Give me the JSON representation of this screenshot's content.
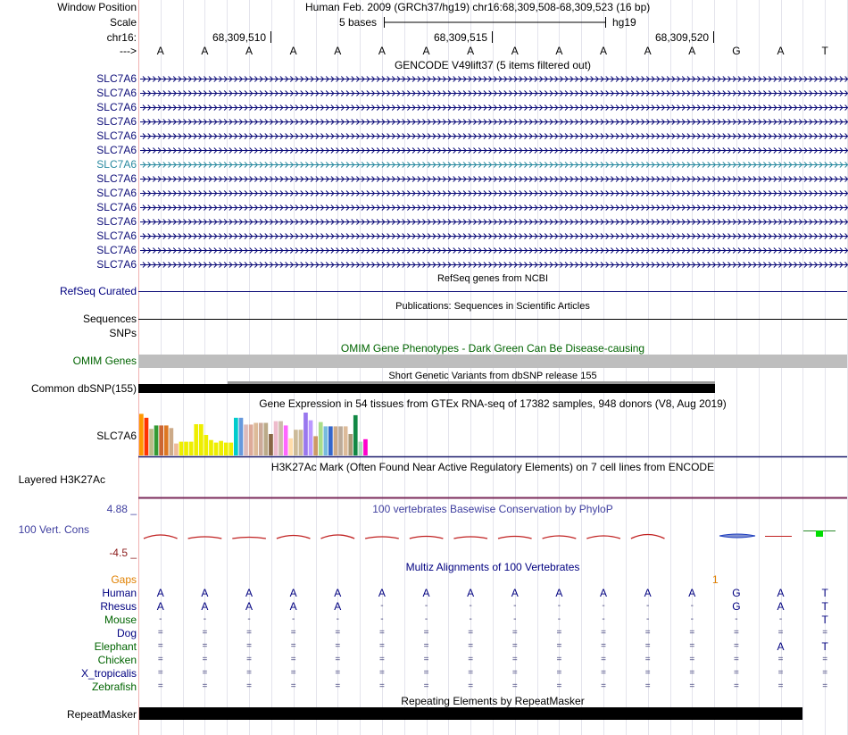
{
  "header": {
    "window_position_label": "Window Position",
    "window_position_text": "Human Feb. 2009 (GRCh37/hg19)   chr16:68,309,508-68,309,523 (16 bp)",
    "scale_label": "Scale",
    "scale_text": "5 bases",
    "scale_db": "hg19",
    "chrom_label": "chr16:",
    "arrow_label": "--->",
    "coords": [
      "68,309,510",
      "68,309,515",
      "68,309,520"
    ],
    "bases": [
      "A",
      "A",
      "A",
      "A",
      "A",
      "A",
      "A",
      "A",
      "A",
      "A",
      "A",
      "A",
      "A",
      "G",
      "A",
      "T"
    ]
  },
  "gencode": {
    "title": "GENCODE V49lift37 (5 items filtered out)",
    "genes": [
      "SLC7A6",
      "SLC7A6",
      "SLC7A6",
      "SLC7A6",
      "SLC7A6",
      "SLC7A6",
      "SLC7A6",
      "SLC7A6",
      "SLC7A6",
      "SLC7A6",
      "SLC7A6",
      "SLC7A6",
      "SLC7A6",
      "SLC7A6"
    ],
    "highlight_color": "#2a8aa0",
    "gene_color": "#0c0c78"
  },
  "refseq": {
    "title": "RefSeq genes from NCBI",
    "label": "RefSeq Curated"
  },
  "pubs": {
    "title": "Publications: Sequences in Scientific Articles",
    "label": "Sequences"
  },
  "snps": {
    "label": "SNPs"
  },
  "omim": {
    "title": "OMIM Gene Phenotypes - Dark Green Can Be Disease-causing",
    "label": "OMIM Genes"
  },
  "dbsnp": {
    "title": "Short Genetic Variants from dbSNP release 155",
    "label": "Common dbSNP(155)"
  },
  "gtex": {
    "title": "Gene Expression in 54 tissues from GTEx RNA-seq of 17382 samples, 948 donors (V8, Aug 2019)",
    "label": "SLC7A6",
    "bars": [
      {
        "value": 0.97,
        "color": "#FF9900"
      },
      {
        "value": 0.88,
        "color": "#FF3300"
      },
      {
        "value": 0.62,
        "color": "#BBBB88"
      },
      {
        "value": 0.7,
        "color": "#339933"
      },
      {
        "value": 0.7,
        "color": "#CC6633"
      },
      {
        "value": 0.7,
        "color": "#DD7722"
      },
      {
        "value": 0.64,
        "color": "#CCAA88"
      },
      {
        "value": 0.28,
        "color": "#EEBB99"
      },
      {
        "value": 0.32,
        "color": "#EEEE00"
      },
      {
        "value": 0.32,
        "color": "#EEEE00"
      },
      {
        "value": 0.32,
        "color": "#EEEE00"
      },
      {
        "value": 0.73,
        "color": "#EEEE00"
      },
      {
        "value": 0.73,
        "color": "#EEEE00"
      },
      {
        "value": 0.48,
        "color": "#EEEE00"
      },
      {
        "value": 0.36,
        "color": "#EEEE00"
      },
      {
        "value": 0.3,
        "color": "#EEEE00"
      },
      {
        "value": 0.34,
        "color": "#EEEE00"
      },
      {
        "value": 0.3,
        "color": "#EEEE00"
      },
      {
        "value": 0.3,
        "color": "#EEEE00"
      },
      {
        "value": 0.88,
        "color": "#00CCCC"
      },
      {
        "value": 0.88,
        "color": "#6699DD"
      },
      {
        "value": 0.72,
        "color": "#DDBBBB"
      },
      {
        "value": 0.72,
        "color": "#DDAA99"
      },
      {
        "value": 0.76,
        "color": "#DDBB99"
      },
      {
        "value": 0.76,
        "color": "#CCAA99"
      },
      {
        "value": 0.76,
        "color": "#BBAA88"
      },
      {
        "value": 0.5,
        "color": "#886644"
      },
      {
        "value": 0.8,
        "color": "#EEBBCC"
      },
      {
        "value": 0.8,
        "color": "#CCBBAA"
      },
      {
        "value": 0.7,
        "color": "#FF66FF"
      },
      {
        "value": 0.4,
        "color": "#FFDDAA"
      },
      {
        "value": 0.6,
        "color": "#CCBB99"
      },
      {
        "value": 0.6,
        "color": "#CCBB99"
      },
      {
        "value": 1.0,
        "color": "#9977EE"
      },
      {
        "value": 0.82,
        "color": "#BB99FF"
      },
      {
        "value": 0.45,
        "color": "#CC9966"
      },
      {
        "value": 0.78,
        "color": "#AADD88"
      },
      {
        "value": 0.68,
        "color": "#77BBDD"
      },
      {
        "value": 0.68,
        "color": "#3366CC"
      },
      {
        "value": 0.68,
        "color": "#CCAA88"
      },
      {
        "value": 0.68,
        "color": "#BBAA99"
      },
      {
        "value": 0.68,
        "color": "#DDBB99"
      },
      {
        "value": 0.5,
        "color": "#AA9977"
      },
      {
        "value": 0.94,
        "color": "#118844"
      },
      {
        "value": 0.32,
        "color": "#AADDBB"
      },
      {
        "value": 0.38,
        "color": "#FF00CC"
      }
    ]
  },
  "h3k27ac": {
    "title": "H3K27Ac Mark (Often Found Near Active Regulatory Elements) on 7 cell lines from ENCODE",
    "label": "Layered H3K27Ac"
  },
  "cons": {
    "title": "100 vertebrates Basewise Conservation by PhyloP",
    "label": "100 Vert. Cons",
    "max_label": "4.88 _",
    "min_label": "-4.5 _"
  },
  "multiz": {
    "title": "Multiz Alignments of 100 Vertebrates",
    "gaps_label": "Gaps",
    "gaps_marks": [
      "",
      "",
      "",
      "",
      "",
      "",
      "",
      "",
      "",
      "",
      "",
      "",
      "1",
      "",
      "",
      ""
    ],
    "rows": [
      {
        "species": "Human",
        "color": "#000080",
        "bases": [
          "A",
          "A",
          "A",
          "A",
          "A",
          "A",
          "A",
          "A",
          "A",
          "A",
          "A",
          "A",
          "A",
          "G",
          "A",
          "T"
        ]
      },
      {
        "species": "Rhesus",
        "color": "#000080",
        "bases": [
          "A",
          "A",
          "A",
          "A",
          "A",
          "-",
          "-",
          "-",
          "-",
          "-",
          "-",
          "-",
          "-",
          "G",
          "A",
          "T"
        ]
      },
      {
        "species": "Mouse",
        "color": "#006400",
        "bases": [
          "-",
          "-",
          "-",
          "-",
          "-",
          "-",
          "-",
          "-",
          "-",
          "-",
          "-",
          "-",
          "-",
          "-",
          "-",
          "T"
        ]
      },
      {
        "species": "Dog",
        "color": "#000080",
        "bases": [
          "=",
          "=",
          "=",
          "=",
          "=",
          "=",
          "=",
          "=",
          "=",
          "=",
          "=",
          "=",
          "=",
          "=",
          "=",
          "="
        ]
      },
      {
        "species": "Elephant",
        "color": "#006400",
        "bases": [
          "=",
          "=",
          "=",
          "=",
          "=",
          "=",
          "=",
          "=",
          "=",
          "=",
          "=",
          "=",
          "=",
          "=",
          "A",
          "T"
        ]
      },
      {
        "species": "Chicken",
        "color": "#006400",
        "bases": [
          "=",
          "=",
          "=",
          "=",
          "=",
          "=",
          "=",
          "=",
          "=",
          "=",
          "=",
          "=",
          "=",
          "=",
          "=",
          "="
        ]
      },
      {
        "species": "X_tropicalis",
        "color": "#000080",
        "bases": [
          "=",
          "=",
          "=",
          "=",
          "=",
          "=",
          "=",
          "=",
          "=",
          "=",
          "=",
          "=",
          "=",
          "=",
          "=",
          "="
        ]
      },
      {
        "species": "Zebrafish",
        "color": "#006400",
        "bases": [
          "=",
          "=",
          "=",
          "=",
          "=",
          "=",
          "=",
          "=",
          "=",
          "=",
          "=",
          "=",
          "=",
          "=",
          "=",
          "="
        ]
      }
    ]
  },
  "repeatmasker": {
    "title": "Repeating Elements by RepeatMasker",
    "label": "RepeatMasker"
  }
}
